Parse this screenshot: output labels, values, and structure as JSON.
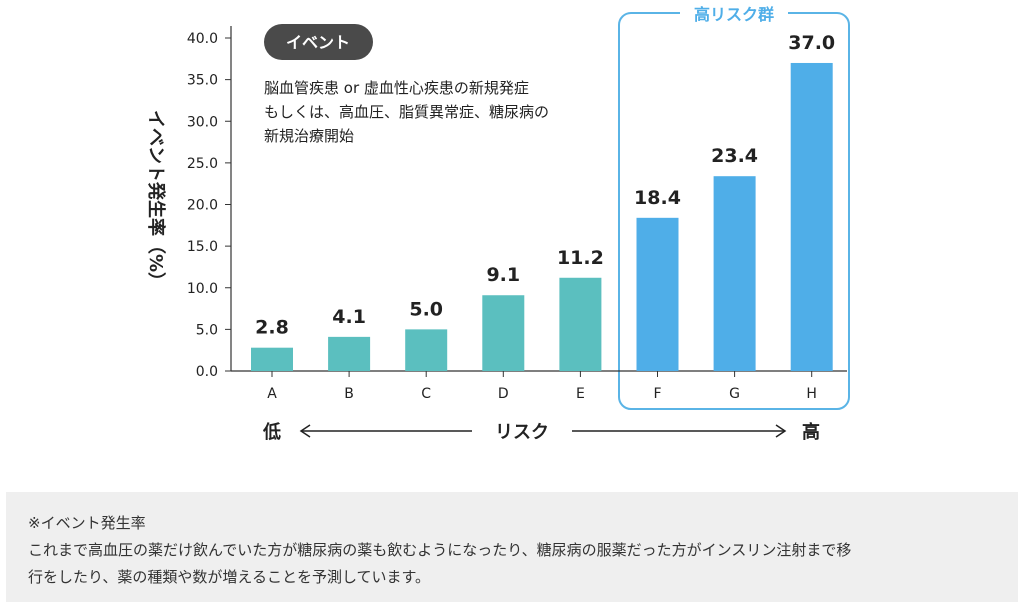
{
  "chart_data": {
    "type": "bar",
    "title": "",
    "ylabel": "イベント発生率（%）",
    "xlabel": "リスク",
    "ylim": [
      0,
      40
    ],
    "yticks": [
      "0.0",
      "5.0",
      "10.0",
      "15.0",
      "20.0",
      "25.0",
      "30.0",
      "35.0",
      "40.0"
    ],
    "categories": [
      "A",
      "B",
      "C",
      "D",
      "E",
      "F",
      "G",
      "H"
    ],
    "values": [
      2.8,
      4.1,
      5.0,
      9.1,
      11.2,
      18.4,
      23.4,
      37.0
    ],
    "value_labels": [
      "2.8",
      "4.1",
      "5.0",
      "9.1",
      "11.2",
      "18.4",
      "23.4",
      "37.0"
    ],
    "high_risk_categories": [
      "F",
      "G",
      "H"
    ],
    "high_risk_label": "高リスク群",
    "risk_low_label": "低",
    "risk_high_label": "高",
    "event_badge": "イベント",
    "event_description": [
      "脳血管疾患 or 虚血性心疾患の新規発症",
      "もしくは、高血圧、脂質異常症、糖尿病の",
      "新規治療開始"
    ],
    "colors": {
      "normal_bar": "#5bbfbf",
      "high_bar": "#4faee8",
      "high_box": "#5ab4e6",
      "badge_bg": "#4a4a4a",
      "badge_text": "#ffffff",
      "note_bg": "#efefef"
    },
    "grid": false
  },
  "note": {
    "title": "※イベント発生率",
    "line1": "これまで高血圧の薬だけ飲んでいた方が糖尿病の薬も飲むようになったり、糖尿病の服薬だった方がインスリン注射まで移",
    "line2": "行をしたり、薬の種類や数が増えることを予測しています。"
  }
}
